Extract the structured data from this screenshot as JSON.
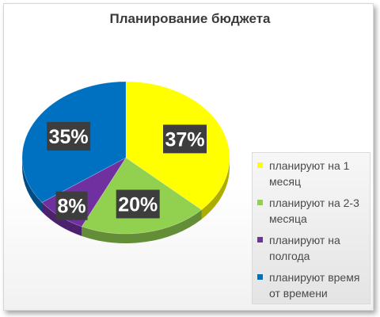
{
  "chart_data": {
    "type": "pie",
    "title": "Планирование бюджета",
    "categories": [
      "планируют на 1 месяц",
      "планируют на 2-3 месяца",
      "планируют на полгода",
      "планируют время от времени"
    ],
    "values": [
      37,
      20,
      8,
      35
    ],
    "labels": [
      "37%",
      "20%",
      "8%",
      "35%"
    ],
    "colors": [
      "#ffff00",
      "#92d050",
      "#7030a0",
      "#0070c0"
    ],
    "legend_position": "right"
  }
}
